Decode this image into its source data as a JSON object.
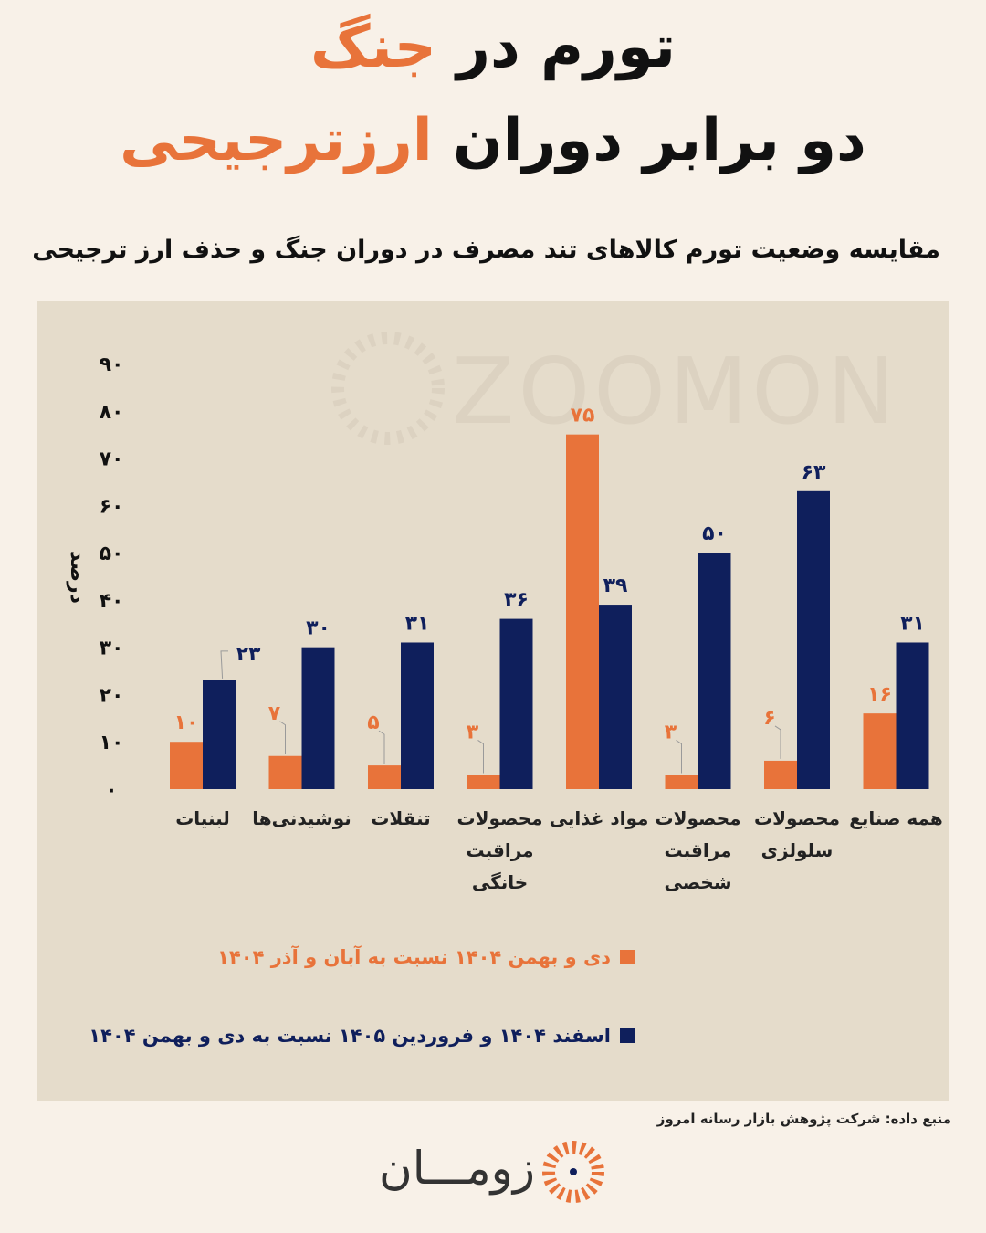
{
  "title": {
    "line1_dark": "تورم در",
    "line1_accent": "جنگ",
    "line2_dark": "دو برابر دوران",
    "line2_accent": "ارزترجیحی"
  },
  "subtitle": "مقایسه وضعیت تورم کالاهای تند مصرف در دوران جنگ  و حذف ارز ترجیحی",
  "colors": {
    "accent": "#e8733a",
    "navy": "#0f1f5c",
    "background": "#f8f1e8",
    "panel": "#e5dccb"
  },
  "watermark": "ZOOMON",
  "chart_data": {
    "type": "bar",
    "ylabel": "درصد",
    "ylim": [
      0,
      90
    ],
    "yticks": [
      "۰",
      "۱۰",
      "۲۰",
      "۳۰",
      "۴۰",
      "۵۰",
      "۶۰",
      "۷۰",
      "۸۰",
      "۹۰"
    ],
    "categories": [
      [
        "لبنیات"
      ],
      [
        "نوشیدنی‌ها"
      ],
      [
        "تنقلات"
      ],
      [
        "محصولات",
        "مراقبت",
        "خانگی"
      ],
      [
        "مواد غذایی"
      ],
      [
        "محصولات",
        "مراقبت",
        "شخصی"
      ],
      [
        "محصولات",
        "سلولزی"
      ],
      [
        "همه صنایع"
      ]
    ],
    "series": [
      {
        "name": "دی و بهمن ۱۴۰۴ نسبت به آبان و آذر ۱۴۰۴",
        "color": "#e8733a",
        "values": [
          10,
          7,
          5,
          3,
          75,
          3,
          6,
          16
        ],
        "labels": [
          "۱۰",
          "۷",
          "۵",
          "۳",
          "۷۵",
          "۳",
          "۶",
          "۱۶"
        ]
      },
      {
        "name": "اسفند ۱۴۰۴ و فروردین ۱۴۰۵ نسبت به دی و بهمن ۱۴۰۴",
        "color": "#0f1f5c",
        "values": [
          23,
          30,
          31,
          36,
          39,
          50,
          63,
          31
        ],
        "labels": [
          "۲۳",
          "۳۰",
          "۳۱",
          "۳۶",
          "۳۹",
          "۵۰",
          "۶۳",
          "۳۱"
        ]
      }
    ],
    "grid": false,
    "legend_placement": "bottom-center"
  },
  "source": "منبع داده: شرکت پژوهش بازار رسانه امروز",
  "brand": {
    "name": "زومـــان"
  }
}
